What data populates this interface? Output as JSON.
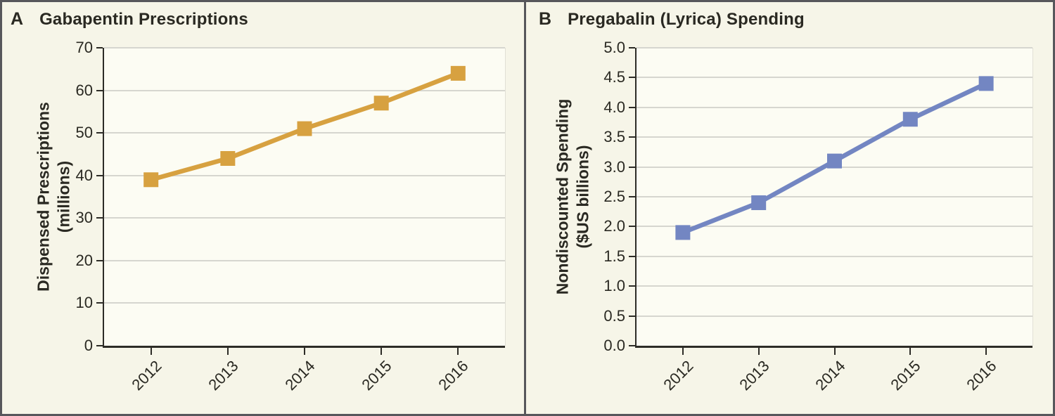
{
  "figure": {
    "background": "#f6f5e8",
    "plot_background": "#fcfcf3",
    "border_color": "#57575b",
    "axis_color": "#2d2c27",
    "grid_color": "#d6d6cf",
    "text_color": "#2a2922"
  },
  "chart_data": [
    {
      "type": "line",
      "panel_letter": "A",
      "title": "Gabapentin Prescriptions",
      "ylabel_line1": "Dispensed Prescriptions",
      "ylabel_line2": "(millions)",
      "x": [
        "2012",
        "2013",
        "2014",
        "2015",
        "2016"
      ],
      "values": [
        39,
        44,
        51,
        57,
        64
      ],
      "ylim": [
        0,
        70
      ],
      "ytick_step": 10,
      "ytick_labels": [
        "0",
        "10",
        "20",
        "30",
        "40",
        "50",
        "60",
        "70"
      ],
      "line_color": "#d7a140",
      "marker": "square",
      "grid": true,
      "legend": "none"
    },
    {
      "type": "line",
      "panel_letter": "B",
      "title": "Pregabalin (Lyrica) Spending",
      "ylabel_line1": "Nondiscounted Spending",
      "ylabel_line2": "($US billions)",
      "x": [
        "2012",
        "2013",
        "2014",
        "2015",
        "2016"
      ],
      "values": [
        1.9,
        2.4,
        3.1,
        3.8,
        4.4
      ],
      "ylim": [
        0,
        5
      ],
      "ytick_step": 0.5,
      "ytick_labels": [
        "0.0",
        "0.5",
        "1.0",
        "1.5",
        "2.0",
        "2.5",
        "3.0",
        "3.5",
        "4.0",
        "4.5",
        "5.0"
      ],
      "line_color": "#7386c2",
      "marker": "square",
      "grid": true,
      "legend": "none"
    }
  ]
}
